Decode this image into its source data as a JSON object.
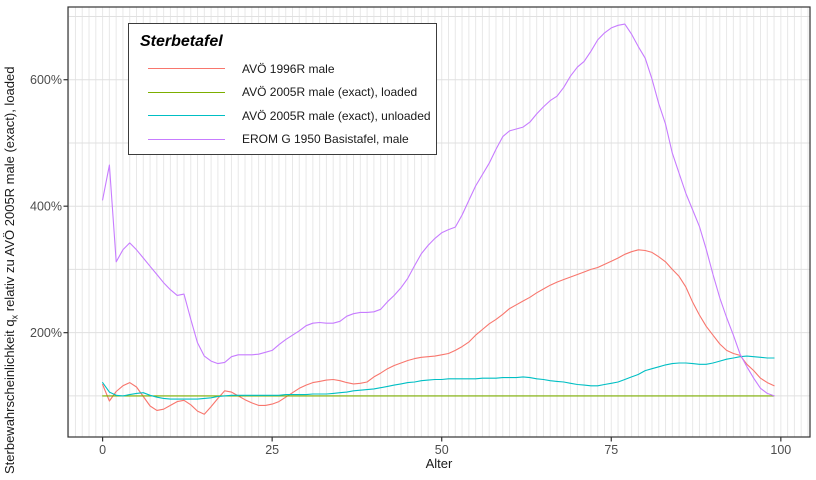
{
  "figure": {
    "x_axis_title": "Alter",
    "y_axis_title": {
      "pre": "Sterbewahrscheinlichkeit  q",
      "sub": "x",
      "post": " relativ zu AVÖ 2005R male (exact), loaded"
    }
  },
  "legend": {
    "title": "Sterbetafel"
  },
  "chart_data": {
    "type": "line",
    "title": "Sterbetafel",
    "xlabel": "Alter",
    "ylabel": "Sterbewahrscheinlichkeit qx relativ zu AVÖ 2005R male (exact), loaded",
    "legend_position": "top-left-inside",
    "grid": {
      "x_minor_step": 1,
      "y_minor_step": 100,
      "gridlines_on": true
    },
    "x_ticks": {
      "values": [
        0,
        25,
        50,
        75,
        100
      ],
      "labels": [
        "0",
        "25",
        "50",
        "75",
        "100"
      ]
    },
    "y_ticks": {
      "values": [
        200,
        400,
        600
      ],
      "labels": [
        "200%",
        "400%",
        "600%"
      ]
    },
    "x_range": [
      -5.1,
      104.3
    ],
    "y_range": [
      35,
      715
    ],
    "x": [
      0,
      1,
      2,
      3,
      4,
      5,
      6,
      7,
      8,
      9,
      10,
      11,
      12,
      13,
      14,
      15,
      16,
      17,
      18,
      19,
      20,
      21,
      22,
      23,
      24,
      25,
      26,
      27,
      28,
      29,
      30,
      31,
      32,
      33,
      34,
      35,
      36,
      37,
      38,
      39,
      40,
      41,
      42,
      43,
      44,
      45,
      46,
      47,
      48,
      49,
      50,
      51,
      52,
      53,
      54,
      55,
      56,
      57,
      58,
      59,
      60,
      61,
      62,
      63,
      64,
      65,
      66,
      67,
      68,
      69,
      70,
      71,
      72,
      73,
      74,
      75,
      76,
      77,
      78,
      79,
      80,
      81,
      82,
      83,
      84,
      85,
      86,
      87,
      88,
      89,
      90,
      91,
      92,
      93,
      94,
      95,
      96,
      97,
      98,
      99
    ],
    "series": [
      {
        "name": "AVÖ 1996R male",
        "color": "#F8766D",
        "values": [
          118,
          92,
          107,
          116,
          121,
          114,
          99,
          84,
          77,
          79,
          85,
          91,
          93,
          86,
          76,
          71,
          83,
          96,
          108,
          106,
          100,
          94,
          89,
          85,
          85,
          87,
          91,
          98,
          105,
          112,
          117,
          121,
          123,
          125,
          126,
          124,
          121,
          119,
          120,
          122,
          130,
          136,
          143,
          148,
          152,
          156,
          159,
          161,
          162,
          163,
          165,
          167,
          172,
          178,
          185,
          196,
          205,
          214,
          221,
          229,
          238,
          244,
          250,
          256,
          263,
          269,
          275,
          280,
          284,
          288,
          292,
          296,
          300,
          303,
          308,
          313,
          318,
          324,
          328,
          331,
          330,
          327,
          320,
          312,
          300,
          289,
          272,
          248,
          228,
          210,
          196,
          182,
          172,
          167,
          164,
          150,
          140,
          128,
          121,
          116
        ]
      },
      {
        "name": "AVÖ 2005R male (exact), loaded",
        "color": "#7CAE00",
        "values": [
          100,
          100,
          100,
          100,
          100,
          100,
          100,
          100,
          100,
          100,
          100,
          100,
          100,
          100,
          100,
          100,
          100,
          100,
          100,
          100,
          100,
          100,
          100,
          100,
          100,
          100,
          100,
          100,
          100,
          100,
          100,
          100,
          100,
          100,
          100,
          100,
          100,
          100,
          100,
          100,
          100,
          100,
          100,
          100,
          100,
          100,
          100,
          100,
          100,
          100,
          100,
          100,
          100,
          100,
          100,
          100,
          100,
          100,
          100,
          100,
          100,
          100,
          100,
          100,
          100,
          100,
          100,
          100,
          100,
          100,
          100,
          100,
          100,
          100,
          100,
          100,
          100,
          100,
          100,
          100,
          100,
          100,
          100,
          100,
          100,
          100,
          100,
          100,
          100,
          100,
          100,
          100,
          100,
          100,
          100,
          100,
          100,
          100,
          100,
          100
        ]
      },
      {
        "name": "AVÖ 2005R male (exact), unloaded",
        "color": "#00BFC4",
        "values": [
          121,
          106,
          101,
          100,
          102,
          104,
          105,
          101,
          98,
          96,
          95,
          95,
          95,
          95,
          95,
          96,
          97,
          99,
          100,
          101,
          101,
          101,
          101,
          101,
          101,
          101,
          101,
          102,
          102,
          102,
          102,
          103,
          103,
          103,
          104,
          105,
          106,
          108,
          109,
          110,
          111,
          113,
          115,
          117,
          119,
          121,
          122,
          124,
          125,
          126,
          126,
          127,
          127,
          127,
          127,
          127,
          128,
          128,
          128,
          129,
          129,
          129,
          130,
          129,
          127,
          126,
          124,
          123,
          122,
          120,
          118,
          117,
          116,
          116,
          118,
          120,
          122,
          126,
          130,
          134,
          140,
          143,
          146,
          149,
          151,
          152,
          152,
          151,
          150,
          150,
          152,
          155,
          158,
          160,
          162,
          163,
          162,
          161,
          160,
          160
        ]
      },
      {
        "name": "EROM G 1950 Basistafel, male",
        "color": "#C77CFF",
        "values": [
          410,
          465,
          312,
          331,
          342,
          331,
          318,
          305,
          292,
          279,
          268,
          259,
          261,
          221,
          184,
          163,
          155,
          151,
          153,
          162,
          165,
          165,
          165,
          166,
          169,
          172,
          181,
          189,
          196,
          203,
          211,
          215,
          216,
          215,
          215,
          218,
          226,
          230,
          232,
          232,
          233,
          237,
          249,
          259,
          271,
          286,
          306,
          325,
          338,
          349,
          358,
          363,
          367,
          386,
          409,
          432,
          450,
          468,
          490,
          510,
          519,
          522,
          525,
          533,
          546,
          557,
          567,
          574,
          588,
          606,
          620,
          629,
          645,
          663,
          674,
          682,
          686,
          688,
          672,
          652,
          634,
          601,
          562,
          530,
          484,
          452,
          420,
          394,
          368,
          332,
          292,
          255,
          224,
          196,
          166,
          146,
          128,
          112,
          104,
          100
        ]
      }
    ]
  }
}
